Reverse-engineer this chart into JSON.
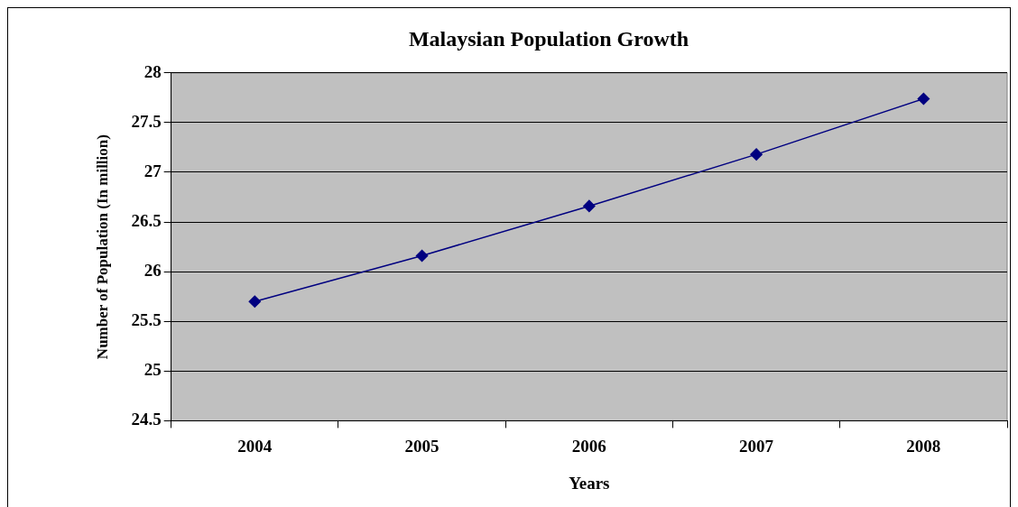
{
  "chart_data": {
    "type": "line",
    "title": "Malaysian Population Growth",
    "xlabel": "Years",
    "ylabel": "Number of Population (In million)",
    "categories": [
      "2004",
      "2005",
      "2006",
      "2007",
      "2008"
    ],
    "series": [
      {
        "color": "#000080",
        "values": [
          25.7,
          26.16,
          26.66,
          27.18,
          27.74
        ]
      }
    ],
    "ylim": [
      24.5,
      28
    ],
    "yticks": [
      24.5,
      25,
      25.5,
      26,
      26.5,
      27,
      27.5,
      28
    ],
    "grid": "y",
    "legend": false,
    "marker": "diamond",
    "line_style": "solid"
  }
}
